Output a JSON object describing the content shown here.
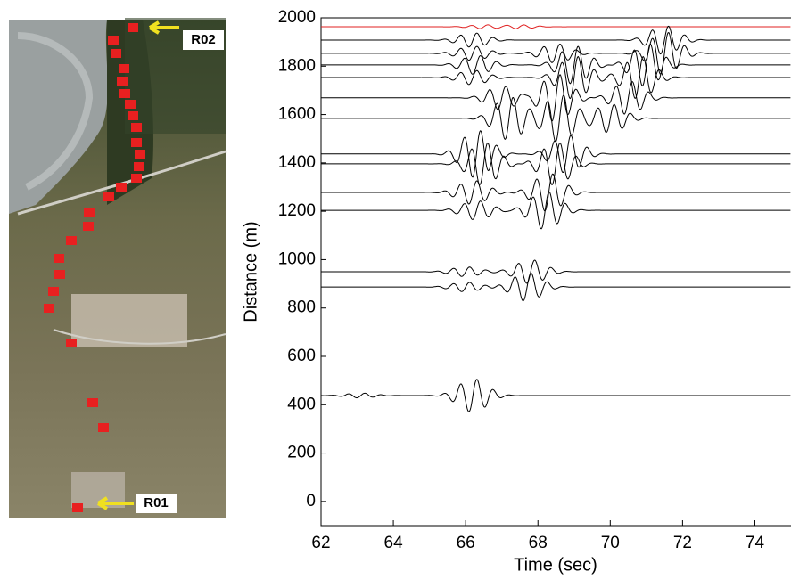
{
  "chart_data": {
    "type": "wiggle",
    "x_label": "Time (sec)",
    "y_label": "Distance (m)",
    "xlim": [
      62,
      75
    ],
    "xticks": [
      62,
      64,
      66,
      68,
      70,
      72,
      74
    ],
    "ylim": [
      -100,
      2000
    ],
    "yticks": [
      0,
      200,
      400,
      600,
      800,
      1000,
      1200,
      1400,
      1600,
      1800,
      2000
    ],
    "map_labels": [
      "R02",
      "R01"
    ],
    "traces": [
      {
        "distance": 1963,
        "color": "#e02020",
        "packets": [
          [
            66.5,
            8
          ],
          [
            67.5,
            8
          ]
        ]
      },
      {
        "distance": 1908,
        "color": "#000000",
        "packets": [
          [
            66.2,
            30
          ],
          [
            71.5,
            60
          ]
        ]
      },
      {
        "distance": 1853,
        "color": "#000000",
        "packets": [
          [
            66.2,
            30
          ],
          [
            68.5,
            40
          ],
          [
            71.5,
            90
          ]
        ]
      },
      {
        "distance": 1805,
        "color": "#000000",
        "packets": [
          [
            66.3,
            40
          ],
          [
            69,
            80
          ],
          [
            71,
            90
          ]
        ]
      },
      {
        "distance": 1753,
        "color": "#000000",
        "packets": [
          [
            66.2,
            30
          ],
          [
            69,
            90
          ],
          [
            70.8,
            90
          ]
        ]
      },
      {
        "distance": 1669,
        "color": "#000000",
        "packets": [
          [
            67,
            50
          ],
          [
            68.5,
            100
          ],
          [
            70.5,
            70
          ]
        ]
      },
      {
        "distance": 1584,
        "color": "#000000",
        "packets": [
          [
            67.2,
            90
          ],
          [
            68.6,
            100
          ],
          [
            70,
            60
          ]
        ]
      },
      {
        "distance": 1437,
        "color": "#000000",
        "packets": [
          [
            66.3,
            100
          ],
          [
            68.8,
            80
          ]
        ]
      },
      {
        "distance": 1396,
        "color": "#000000",
        "packets": [
          [
            66.5,
            90
          ],
          [
            68.5,
            90
          ]
        ]
      },
      {
        "distance": 1278,
        "color": "#000000",
        "packets": [
          [
            66.2,
            50
          ],
          [
            68.3,
            80
          ]
        ]
      },
      {
        "distance": 1204,
        "color": "#000000",
        "packets": [
          [
            66.3,
            40
          ],
          [
            68.2,
            80
          ]
        ]
      },
      {
        "distance": 950,
        "color": "#000000",
        "packets": [
          [
            66,
            20
          ],
          [
            67.8,
            50
          ]
        ]
      },
      {
        "distance": 887,
        "color": "#000000",
        "packets": [
          [
            66,
            20
          ],
          [
            67.7,
            60
          ]
        ]
      },
      {
        "distance": 438,
        "color": "#000000",
        "packets": [
          [
            63.1,
            10
          ],
          [
            66.2,
            70
          ]
        ]
      }
    ]
  }
}
